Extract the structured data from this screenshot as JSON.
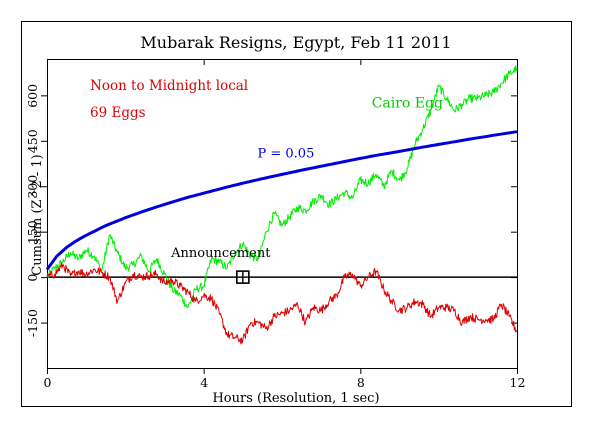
{
  "chart_data": {
    "type": "line",
    "title": "Mubarak Resigns, Egypt, Feb 11 2011",
    "xlabel": "Hours (Resolution, 1 sec)",
    "ylabel": "Cumsum (Z^2 - 1)",
    "xlim": [
      0,
      12
    ],
    "ylim": [
      -300,
      720
    ],
    "x_ticks": [
      0,
      4,
      8,
      12
    ],
    "y_ticks": [
      -150,
      0,
      150,
      300,
      450,
      600
    ],
    "grid": false,
    "annotations": {
      "period": "Noon to Midnight local",
      "eggs": "69 Eggs",
      "event": "Announcement",
      "event_x": 5.0,
      "event_y": 0,
      "p_label": "P = 0.05",
      "p_label_x": 6.1,
      "p_label_y": 395
    },
    "series": [
      {
        "name": "Cairo Egg",
        "color": "#00ee00",
        "label_x": 9.2,
        "label_y": 560,
        "x": [
          0,
          0.2,
          0.4,
          0.6,
          0.8,
          1.0,
          1.2,
          1.4,
          1.6,
          1.8,
          2.0,
          2.2,
          2.4,
          2.6,
          2.8,
          3.0,
          3.2,
          3.4,
          3.6,
          3.8,
          4.0,
          4.2,
          4.4,
          4.6,
          4.8,
          5.0,
          5.2,
          5.4,
          5.6,
          5.8,
          6.0,
          6.2,
          6.4,
          6.6,
          6.8,
          7.0,
          7.2,
          7.4,
          7.6,
          7.8,
          8.0,
          8.2,
          8.4,
          8.6,
          8.8,
          9.0,
          9.2,
          9.4,
          9.6,
          9.8,
          10.0,
          10.2,
          10.4,
          10.6,
          10.8,
          11.0,
          11.2,
          11.4,
          11.6,
          11.8,
          12.0
        ],
        "y": [
          0,
          30,
          50,
          80,
          60,
          90,
          70,
          20,
          140,
          80,
          30,
          40,
          70,
          20,
          60,
          10,
          -40,
          -60,
          -100,
          -40,
          -30,
          60,
          50,
          30,
          80,
          110,
          70,
          60,
          150,
          210,
          170,
          200,
          230,
          220,
          250,
          270,
          240,
          260,
          280,
          260,
          320,
          310,
          340,
          300,
          350,
          320,
          360,
          440,
          490,
          550,
          630,
          590,
          550,
          570,
          590,
          590,
          600,
          610,
          640,
          670,
          690
        ]
      },
      {
        "name": "",
        "color": "#dd0000",
        "x": [
          0,
          0.2,
          0.4,
          0.6,
          0.8,
          1.0,
          1.2,
          1.4,
          1.6,
          1.8,
          2.0,
          2.2,
          2.4,
          2.6,
          2.8,
          3.0,
          3.2,
          3.4,
          3.6,
          3.8,
          4.0,
          4.2,
          4.4,
          4.6,
          4.8,
          5.0,
          5.2,
          5.4,
          5.6,
          5.8,
          6.0,
          6.2,
          6.4,
          6.6,
          6.8,
          7.0,
          7.2,
          7.4,
          7.6,
          7.8,
          8.0,
          8.2,
          8.4,
          8.6,
          8.8,
          9.0,
          9.2,
          9.4,
          9.6,
          9.8,
          10.0,
          10.2,
          10.4,
          10.6,
          10.8,
          11.0,
          11.2,
          11.4,
          11.6,
          11.8,
          12.0
        ],
        "y": [
          0,
          10,
          40,
          5,
          20,
          10,
          25,
          15,
          0,
          -80,
          -20,
          10,
          0,
          5,
          10,
          -20,
          -10,
          -30,
          -50,
          -80,
          -60,
          -70,
          -120,
          -190,
          -200,
          -210,
          -150,
          -150,
          -170,
          -130,
          -120,
          -110,
          -90,
          -150,
          -100,
          -110,
          -80,
          -60,
          0,
          10,
          -30,
          0,
          20,
          -40,
          -80,
          -110,
          -100,
          -80,
          -90,
          -130,
          -100,
          -100,
          -110,
          -150,
          -130,
          -140,
          -140,
          -140,
          -90,
          -130,
          -180
        ]
      },
      {
        "name": "",
        "color": "#0000dd",
        "x": [
          0,
          0.25,
          0.5,
          0.75,
          1.0,
          1.5,
          2.0,
          2.5,
          3.0,
          3.5,
          4.0,
          4.5,
          5.0,
          5.5,
          6.0,
          6.5,
          7.0,
          7.5,
          8.0,
          8.5,
          9.0,
          9.5,
          10.0,
          10.5,
          11.0,
          11.5,
          12.0
        ],
        "y": [
          25,
          69,
          98,
          120,
          138,
          170,
          196,
          219,
          240,
          260,
          277,
          294,
          310,
          325,
          339,
          353,
          366,
          379,
          392,
          404,
          415,
          427,
          438,
          449,
          460,
          470,
          480
        ]
      }
    ]
  }
}
